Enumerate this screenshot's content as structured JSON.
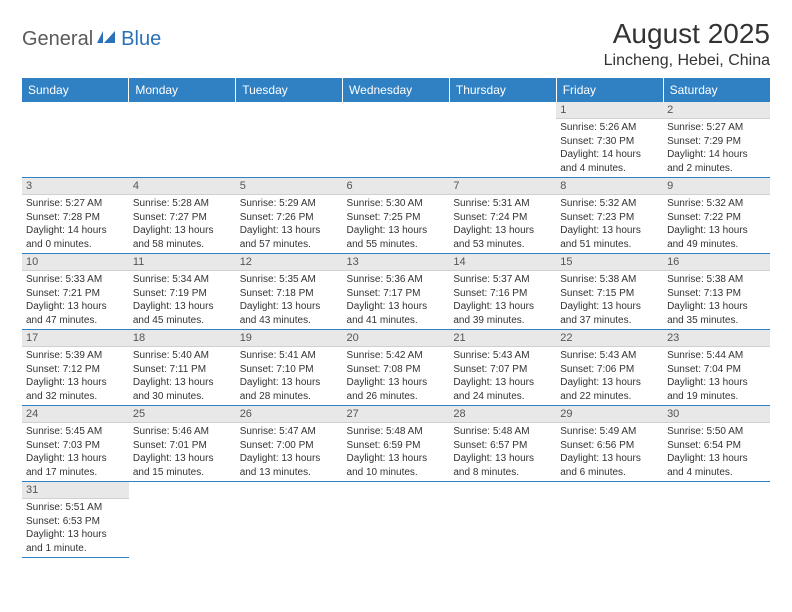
{
  "logo": {
    "general": "General",
    "blue": "Blue"
  },
  "title": "August 2025",
  "location": "Lincheng, Hebei, China",
  "colors": {
    "header_bg": "#3080c4",
    "header_text": "#ffffff",
    "daynum_bg": "#e8e8e8",
    "border": "#3080c4",
    "logo_gray": "#5a5a5a",
    "logo_blue": "#2a71b8"
  },
  "weekdays": [
    "Sunday",
    "Monday",
    "Tuesday",
    "Wednesday",
    "Thursday",
    "Friday",
    "Saturday"
  ],
  "weeks": [
    [
      null,
      null,
      null,
      null,
      null,
      {
        "n": "1",
        "sr": "Sunrise: 5:26 AM",
        "ss": "Sunset: 7:30 PM",
        "dl": "Daylight: 14 hours and 4 minutes."
      },
      {
        "n": "2",
        "sr": "Sunrise: 5:27 AM",
        "ss": "Sunset: 7:29 PM",
        "dl": "Daylight: 14 hours and 2 minutes."
      }
    ],
    [
      {
        "n": "3",
        "sr": "Sunrise: 5:27 AM",
        "ss": "Sunset: 7:28 PM",
        "dl": "Daylight: 14 hours and 0 minutes."
      },
      {
        "n": "4",
        "sr": "Sunrise: 5:28 AM",
        "ss": "Sunset: 7:27 PM",
        "dl": "Daylight: 13 hours and 58 minutes."
      },
      {
        "n": "5",
        "sr": "Sunrise: 5:29 AM",
        "ss": "Sunset: 7:26 PM",
        "dl": "Daylight: 13 hours and 57 minutes."
      },
      {
        "n": "6",
        "sr": "Sunrise: 5:30 AM",
        "ss": "Sunset: 7:25 PM",
        "dl": "Daylight: 13 hours and 55 minutes."
      },
      {
        "n": "7",
        "sr": "Sunrise: 5:31 AM",
        "ss": "Sunset: 7:24 PM",
        "dl": "Daylight: 13 hours and 53 minutes."
      },
      {
        "n": "8",
        "sr": "Sunrise: 5:32 AM",
        "ss": "Sunset: 7:23 PM",
        "dl": "Daylight: 13 hours and 51 minutes."
      },
      {
        "n": "9",
        "sr": "Sunrise: 5:32 AM",
        "ss": "Sunset: 7:22 PM",
        "dl": "Daylight: 13 hours and 49 minutes."
      }
    ],
    [
      {
        "n": "10",
        "sr": "Sunrise: 5:33 AM",
        "ss": "Sunset: 7:21 PM",
        "dl": "Daylight: 13 hours and 47 minutes."
      },
      {
        "n": "11",
        "sr": "Sunrise: 5:34 AM",
        "ss": "Sunset: 7:19 PM",
        "dl": "Daylight: 13 hours and 45 minutes."
      },
      {
        "n": "12",
        "sr": "Sunrise: 5:35 AM",
        "ss": "Sunset: 7:18 PM",
        "dl": "Daylight: 13 hours and 43 minutes."
      },
      {
        "n": "13",
        "sr": "Sunrise: 5:36 AM",
        "ss": "Sunset: 7:17 PM",
        "dl": "Daylight: 13 hours and 41 minutes."
      },
      {
        "n": "14",
        "sr": "Sunrise: 5:37 AM",
        "ss": "Sunset: 7:16 PM",
        "dl": "Daylight: 13 hours and 39 minutes."
      },
      {
        "n": "15",
        "sr": "Sunrise: 5:38 AM",
        "ss": "Sunset: 7:15 PM",
        "dl": "Daylight: 13 hours and 37 minutes."
      },
      {
        "n": "16",
        "sr": "Sunrise: 5:38 AM",
        "ss": "Sunset: 7:13 PM",
        "dl": "Daylight: 13 hours and 35 minutes."
      }
    ],
    [
      {
        "n": "17",
        "sr": "Sunrise: 5:39 AM",
        "ss": "Sunset: 7:12 PM",
        "dl": "Daylight: 13 hours and 32 minutes."
      },
      {
        "n": "18",
        "sr": "Sunrise: 5:40 AM",
        "ss": "Sunset: 7:11 PM",
        "dl": "Daylight: 13 hours and 30 minutes."
      },
      {
        "n": "19",
        "sr": "Sunrise: 5:41 AM",
        "ss": "Sunset: 7:10 PM",
        "dl": "Daylight: 13 hours and 28 minutes."
      },
      {
        "n": "20",
        "sr": "Sunrise: 5:42 AM",
        "ss": "Sunset: 7:08 PM",
        "dl": "Daylight: 13 hours and 26 minutes."
      },
      {
        "n": "21",
        "sr": "Sunrise: 5:43 AM",
        "ss": "Sunset: 7:07 PM",
        "dl": "Daylight: 13 hours and 24 minutes."
      },
      {
        "n": "22",
        "sr": "Sunrise: 5:43 AM",
        "ss": "Sunset: 7:06 PM",
        "dl": "Daylight: 13 hours and 22 minutes."
      },
      {
        "n": "23",
        "sr": "Sunrise: 5:44 AM",
        "ss": "Sunset: 7:04 PM",
        "dl": "Daylight: 13 hours and 19 minutes."
      }
    ],
    [
      {
        "n": "24",
        "sr": "Sunrise: 5:45 AM",
        "ss": "Sunset: 7:03 PM",
        "dl": "Daylight: 13 hours and 17 minutes."
      },
      {
        "n": "25",
        "sr": "Sunrise: 5:46 AM",
        "ss": "Sunset: 7:01 PM",
        "dl": "Daylight: 13 hours and 15 minutes."
      },
      {
        "n": "26",
        "sr": "Sunrise: 5:47 AM",
        "ss": "Sunset: 7:00 PM",
        "dl": "Daylight: 13 hours and 13 minutes."
      },
      {
        "n": "27",
        "sr": "Sunrise: 5:48 AM",
        "ss": "Sunset: 6:59 PM",
        "dl": "Daylight: 13 hours and 10 minutes."
      },
      {
        "n": "28",
        "sr": "Sunrise: 5:48 AM",
        "ss": "Sunset: 6:57 PM",
        "dl": "Daylight: 13 hours and 8 minutes."
      },
      {
        "n": "29",
        "sr": "Sunrise: 5:49 AM",
        "ss": "Sunset: 6:56 PM",
        "dl": "Daylight: 13 hours and 6 minutes."
      },
      {
        "n": "30",
        "sr": "Sunrise: 5:50 AM",
        "ss": "Sunset: 6:54 PM",
        "dl": "Daylight: 13 hours and 4 minutes."
      }
    ],
    [
      {
        "n": "31",
        "sr": "Sunrise: 5:51 AM",
        "ss": "Sunset: 6:53 PM",
        "dl": "Daylight: 13 hours and 1 minute."
      },
      null,
      null,
      null,
      null,
      null,
      null
    ]
  ]
}
